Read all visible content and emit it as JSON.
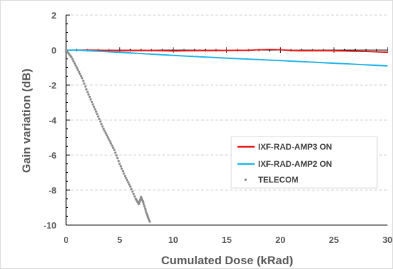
{
  "chart_data": {
    "type": "line",
    "title": "",
    "xlabel": "Cumulated Dose (kRad)",
    "ylabel": "Gain variation (dB)",
    "xlim": [
      0,
      30
    ],
    "ylim": [
      -10,
      2
    ],
    "x_ticks": [
      0,
      5,
      10,
      15,
      20,
      25,
      30
    ],
    "y_ticks": [
      2,
      0,
      -2,
      -4,
      -6,
      -8,
      -10
    ],
    "grid": "horizontal dashed",
    "legend_position": "lower-right",
    "series": [
      {
        "name": "IXF-RAD-AMP3 ON",
        "color": "#e8191a",
        "style": "line",
        "x": [
          0,
          2,
          5,
          8,
          10,
          12,
          15,
          17,
          18,
          19,
          20,
          21,
          22,
          24,
          26,
          28,
          30
        ],
        "y": [
          0.0,
          0.0,
          -0.03,
          -0.02,
          -0.05,
          -0.03,
          -0.02,
          -0.01,
          0.02,
          0.04,
          0.02,
          -0.02,
          -0.04,
          -0.03,
          -0.05,
          -0.08,
          -0.12
        ]
      },
      {
        "name": "IXF-RAD-AMP2 ON",
        "color": "#1fb3e8",
        "style": "line",
        "x": [
          0,
          1,
          5,
          10,
          15,
          20,
          25,
          30
        ],
        "y": [
          0.0,
          0.0,
          -0.13,
          -0.3,
          -0.46,
          -0.6,
          -0.75,
          -0.9
        ]
      },
      {
        "name": "TELECOM",
        "color": "#8c8c8c",
        "style": "dotted",
        "x": [
          0,
          0.5,
          1,
          1.5,
          2,
          2.5,
          3,
          3.5,
          4,
          4.5,
          5,
          5.5,
          6,
          6.5,
          6.8,
          7,
          7.2,
          7.5,
          7.8
        ],
        "y": [
          0.0,
          -0.4,
          -1.0,
          -1.6,
          -2.4,
          -3.1,
          -3.8,
          -4.5,
          -5.1,
          -5.7,
          -6.5,
          -7.2,
          -7.8,
          -8.5,
          -8.8,
          -8.4,
          -8.7,
          -9.3,
          -9.8
        ]
      }
    ]
  }
}
